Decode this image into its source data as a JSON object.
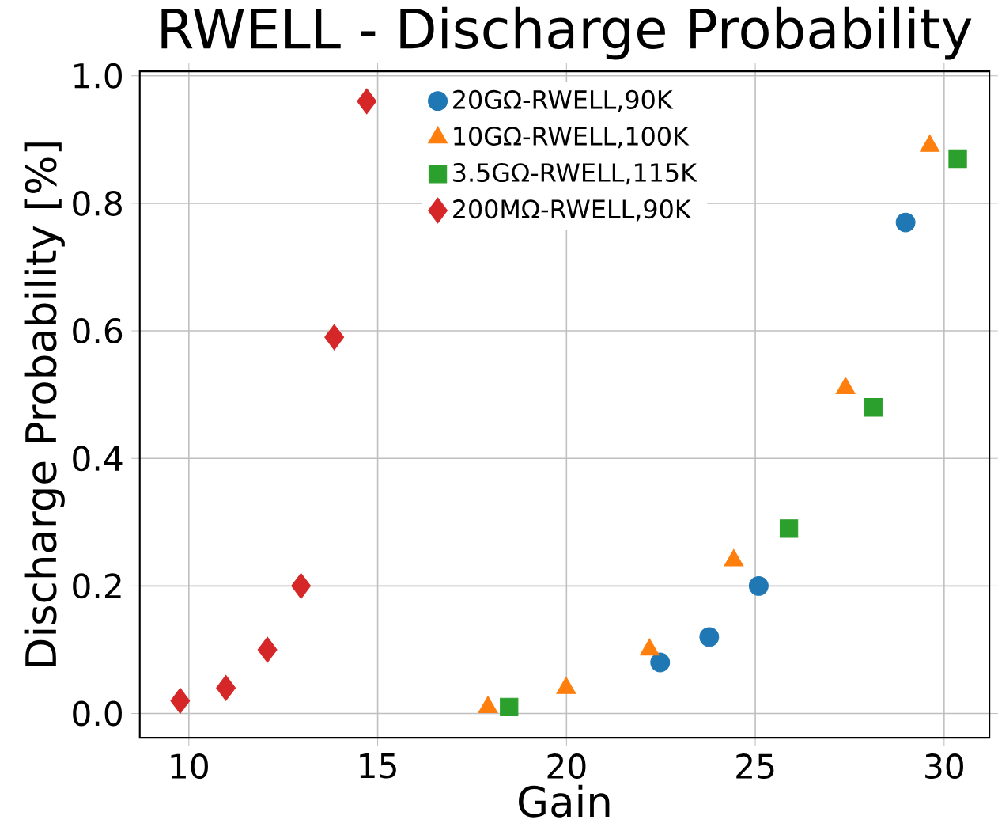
{
  "chart_data": {
    "type": "scatter",
    "title": "RWELL - Discharge Probability",
    "xlabel": "Gain",
    "ylabel": "Discharge Probability [%]",
    "xlim": [
      8.7,
      31.2
    ],
    "ylim": [
      -0.038,
      1.007
    ],
    "xticks": [
      10,
      15,
      20,
      25,
      30
    ],
    "yticks": [
      {
        "value": 0,
        "label": "0.0"
      },
      {
        "value": 0.2,
        "label": "0.2"
      },
      {
        "value": 0.4,
        "label": "0.4"
      },
      {
        "value": 0.6,
        "label": "0.6"
      },
      {
        "value": 0.8,
        "label": "0.8"
      },
      {
        "value": 1.0,
        "label": "1.0"
      }
    ],
    "grid": true,
    "legend": "top",
    "series": [
      {
        "name": "20GΩ-RWELL,90K",
        "color": "#1f77b4",
        "marker": "circle",
        "x": [
          22.48,
          23.78,
          25.09,
          28.98
        ],
        "values": [
          0.08,
          0.12,
          0.2,
          0.77
        ]
      },
      {
        "name": "10GΩ-RWELL,100K",
        "color": "#ff7f0e",
        "marker": "triangle",
        "x": [
          17.92,
          19.99,
          22.2,
          24.43,
          27.39,
          29.62
        ],
        "values": [
          0.01,
          0.04,
          0.1,
          0.24,
          0.51,
          0.89
        ]
      },
      {
        "name": "3.5GΩ-RWELL,115K",
        "color": "#2ca02c",
        "marker": "square",
        "x": [
          18.48,
          25.89,
          28.13,
          30.36
        ],
        "values": [
          0.01,
          0.29,
          0.48,
          0.87
        ]
      },
      {
        "name": "200MΩ-RWELL,90K",
        "color": "#d62728",
        "marker": "diamond",
        "x": [
          9.77,
          10.98,
          12.08,
          12.97,
          13.85,
          14.71
        ],
        "values": [
          0.02,
          0.04,
          0.1,
          0.2,
          0.59,
          0.96
        ]
      }
    ]
  }
}
